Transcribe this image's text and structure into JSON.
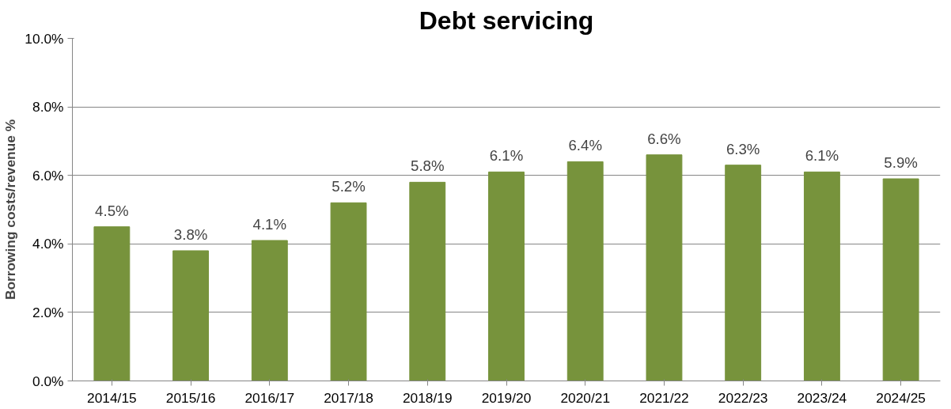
{
  "chart_data": {
    "type": "bar",
    "title": "Debt servicing",
    "ylabel": "Borrowing costs/revenue %",
    "categories": [
      "2014/15",
      "2015/16",
      "2016/17",
      "2017/18",
      "2018/19",
      "2019/20",
      "2020/21",
      "2021/22",
      "2022/23",
      "2023/24",
      "2024/25"
    ],
    "values": [
      4.5,
      3.8,
      4.1,
      5.2,
      5.8,
      6.1,
      6.4,
      6.6,
      6.3,
      6.1,
      5.9
    ],
    "value_labels": [
      "4.5%",
      "3.8%",
      "4.1%",
      "5.2%",
      "5.8%",
      "6.1%",
      "6.4%",
      "6.6%",
      "6.3%",
      "6.1%",
      "5.9%"
    ],
    "color": "#77933c",
    "ylim": [
      0,
      10
    ],
    "yticks": [
      {
        "value": 0,
        "label": "0.0%"
      },
      {
        "value": 2,
        "label": "2.0%"
      },
      {
        "value": 4,
        "label": "4.0%"
      },
      {
        "value": 6,
        "label": "6.0%"
      },
      {
        "value": 8,
        "label": "8.0%"
      },
      {
        "value": 10,
        "label": "10.0%"
      }
    ],
    "grid": "y"
  }
}
